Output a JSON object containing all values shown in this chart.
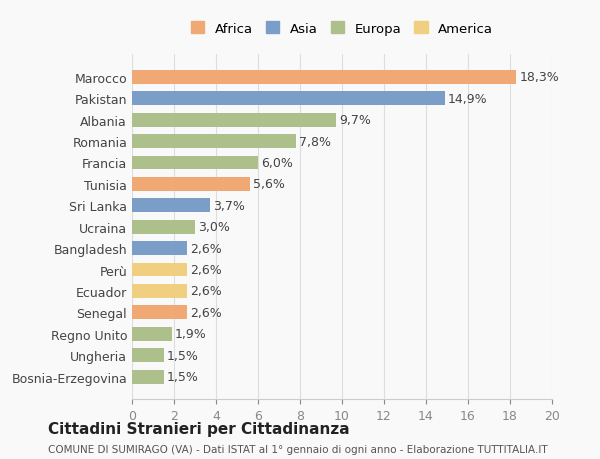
{
  "categories": [
    "Bosnia-Erzegovina",
    "Ungheria",
    "Regno Unito",
    "Senegal",
    "Ecuador",
    "Perù",
    "Bangladesh",
    "Ucraina",
    "Sri Lanka",
    "Tunisia",
    "Francia",
    "Romania",
    "Albania",
    "Pakistan",
    "Marocco"
  ],
  "values": [
    1.5,
    1.5,
    1.9,
    2.6,
    2.6,
    2.6,
    2.6,
    3.0,
    3.7,
    5.6,
    6.0,
    7.8,
    9.7,
    14.9,
    18.3
  ],
  "labels": [
    "1,5%",
    "1,5%",
    "1,9%",
    "2,6%",
    "2,6%",
    "2,6%",
    "2,6%",
    "3,0%",
    "3,7%",
    "5,6%",
    "6,0%",
    "7,8%",
    "9,7%",
    "14,9%",
    "18,3%"
  ],
  "continents": [
    "Europa",
    "Europa",
    "Europa",
    "Africa",
    "America",
    "America",
    "Asia",
    "Europa",
    "Asia",
    "Africa",
    "Europa",
    "Europa",
    "Europa",
    "Asia",
    "Africa"
  ],
  "continent_colors": {
    "Africa": "#F0A875",
    "Asia": "#7B9EC9",
    "Europa": "#ADBF8A",
    "America": "#F0D080"
  },
  "legend_order": [
    "Africa",
    "Asia",
    "Europa",
    "America"
  ],
  "xlim": [
    0,
    20
  ],
  "xticks": [
    0,
    2,
    4,
    6,
    8,
    10,
    12,
    14,
    16,
    18,
    20
  ],
  "title": "Cittadini Stranieri per Cittadinanza",
  "subtitle": "COMUNE DI SUMIRAGO (VA) - Dati ISTAT al 1° gennaio di ogni anno - Elaborazione TUTTITALIA.IT",
  "background_color": "#f9f9f9",
  "bar_height": 0.65,
  "label_fontsize": 9,
  "tick_fontsize": 9
}
